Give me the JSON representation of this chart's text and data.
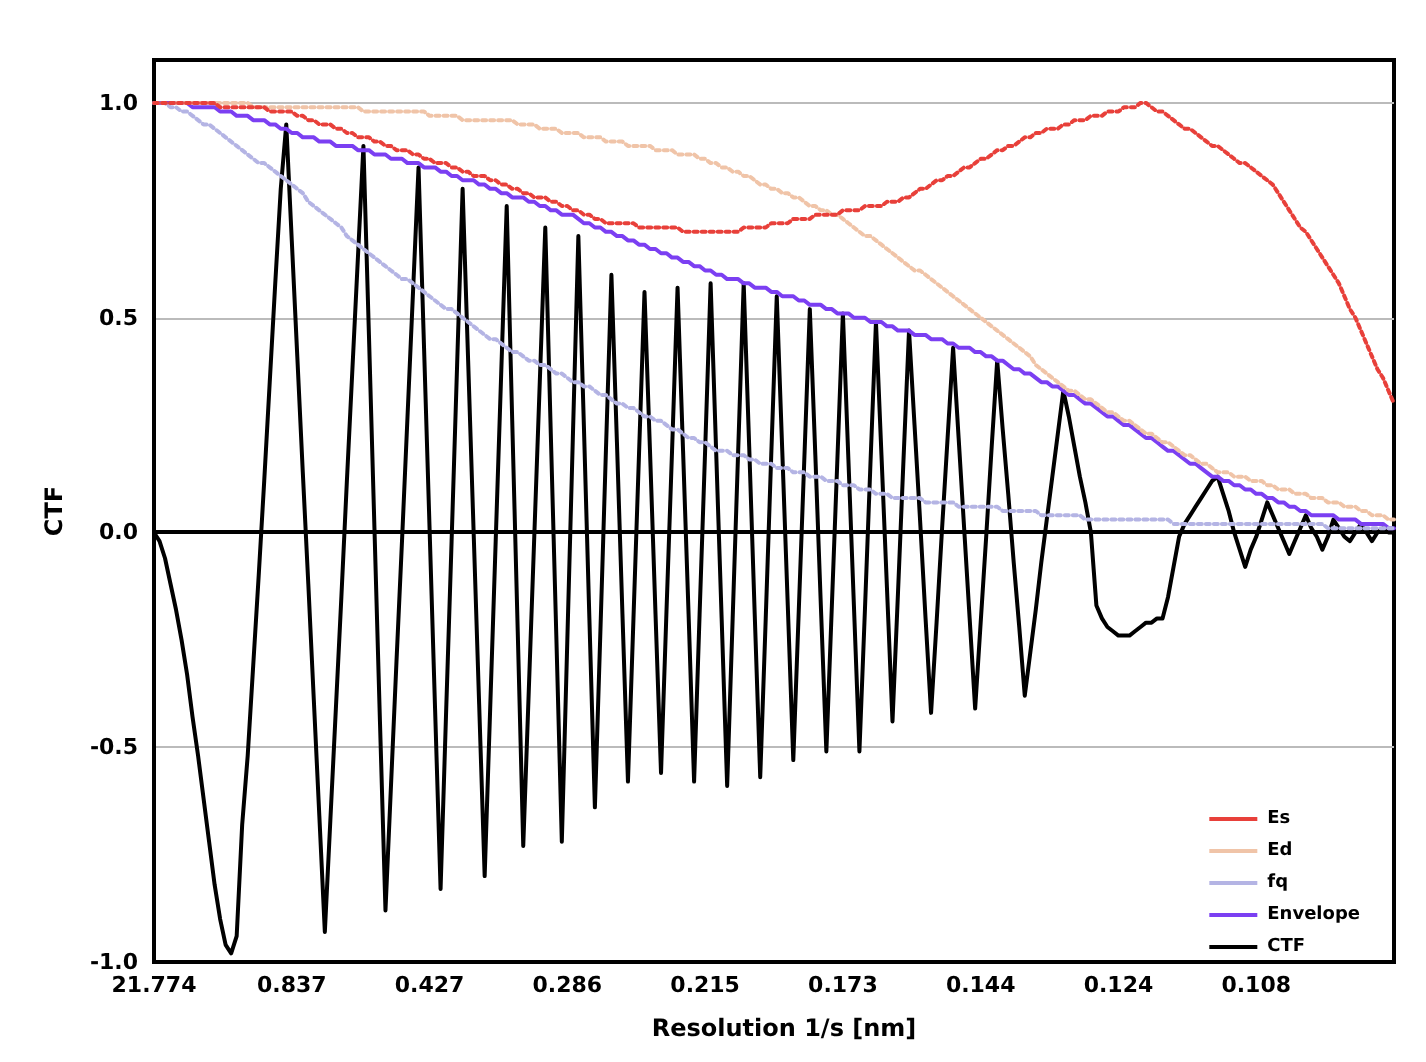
{
  "chart_data": {
    "type": "line",
    "xlabel": "Resolution 1/s [nm]",
    "ylabel": "CTF",
    "categories": [
      "21.774",
      null,
      null,
      null,
      null,
      null,
      null,
      null,
      null,
      null,
      null,
      null,
      null,
      null,
      null,
      null,
      null,
      null,
      null,
      null,
      null,
      null,
      null,
      null,
      null,
      "0.837",
      null,
      null,
      null,
      null,
      null,
      null,
      null,
      null,
      null,
      null,
      null,
      null,
      null,
      null,
      null,
      null,
      null,
      null,
      null,
      null,
      null,
      null,
      null,
      null,
      "0.427",
      null,
      null,
      null,
      null,
      null,
      null,
      null,
      null,
      null,
      null,
      null,
      null,
      null,
      null,
      null,
      null,
      null,
      null,
      null,
      null,
      null,
      null,
      null,
      null,
      "0.286",
      null,
      null,
      null,
      null,
      null,
      null,
      null,
      null,
      null,
      null,
      null,
      null,
      null,
      null,
      null,
      null,
      null,
      null,
      null,
      null,
      null,
      null,
      null,
      null,
      "0.215",
      null,
      null,
      null,
      null,
      null,
      null,
      null,
      null,
      null,
      null,
      null,
      null,
      null,
      null,
      null,
      null,
      null,
      null,
      null,
      null,
      null,
      null,
      null,
      null,
      "0.173",
      null,
      null,
      null,
      null,
      null,
      null,
      null,
      null,
      null,
      null,
      null,
      null,
      null,
      null,
      null,
      null,
      null,
      null,
      null,
      null,
      null,
      null,
      null,
      null,
      "0.144",
      null,
      null,
      null,
      null,
      null,
      null,
      null,
      null,
      null,
      null,
      null,
      null,
      null,
      null,
      null,
      null,
      null,
      null,
      null,
      null,
      null,
      null,
      null,
      null,
      "0.124",
      null,
      null,
      null,
      null,
      null,
      null,
      null,
      null,
      null,
      null,
      null,
      null,
      null,
      null,
      null,
      null,
      null,
      null,
      null,
      null,
      null,
      null,
      null,
      null,
      "0.108",
      null,
      null,
      null,
      null,
      null,
      null,
      null,
      null,
      null,
      null,
      null,
      null,
      null,
      null,
      null,
      null,
      null,
      null,
      null,
      null,
      null,
      null,
      null,
      null,
      null
    ],
    "ylim": [
      -1,
      1.1
    ],
    "yticks": [
      {
        "value": -1,
        "label": "-1.0"
      },
      {
        "value": -0.5,
        "label": "-0.5"
      },
      {
        "value": 0,
        "label": "0.0"
      },
      {
        "value": 0.5,
        "label": "0.5"
      },
      {
        "value": 1,
        "label": "1.0"
      }
    ],
    "grid": "y",
    "legend": "bottom right",
    "marker": "none",
    "series": [
      {
        "name": "Es",
        "color": "#e8403a",
        "line_style": "dotted",
        "values": [
          1.0,
          1.0,
          1.0,
          1.0,
          1.0,
          1.0,
          1.0,
          1.0,
          1.0,
          1.0,
          1.0,
          1.0,
          0.99,
          0.99,
          0.99,
          0.99,
          0.99,
          0.99,
          0.99,
          0.99,
          0.99,
          0.98,
          0.98,
          0.98,
          0.98,
          0.98,
          0.97,
          0.97,
          0.96,
          0.96,
          0.95,
          0.95,
          0.95,
          0.94,
          0.94,
          0.93,
          0.93,
          0.92,
          0.92,
          0.92,
          0.91,
          0.91,
          0.9,
          0.9,
          0.89,
          0.89,
          0.89,
          0.88,
          0.88,
          0.87,
          0.87,
          0.86,
          0.86,
          0.86,
          0.85,
          0.85,
          0.84,
          0.84,
          0.83,
          0.83,
          0.83,
          0.82,
          0.82,
          0.81,
          0.81,
          0.8,
          0.8,
          0.79,
          0.79,
          0.78,
          0.78,
          0.78,
          0.77,
          0.77,
          0.76,
          0.76,
          0.75,
          0.75,
          0.74,
          0.74,
          0.73,
          0.73,
          0.72,
          0.72,
          0.72,
          0.72,
          0.72,
          0.72,
          0.71,
          0.71,
          0.71,
          0.71,
          0.71,
          0.71,
          0.71,
          0.71,
          0.7,
          0.7,
          0.7,
          0.7,
          0.7,
          0.7,
          0.7,
          0.7,
          0.7,
          0.7,
          0.7,
          0.71,
          0.71,
          0.71,
          0.71,
          0.71,
          0.72,
          0.72,
          0.72,
          0.72,
          0.73,
          0.73,
          0.73,
          0.73,
          0.74,
          0.74,
          0.74,
          0.74,
          0.74,
          0.75,
          0.75,
          0.75,
          0.75,
          0.76,
          0.76,
          0.76,
          0.76,
          0.77,
          0.77,
          0.77,
          0.78,
          0.78,
          0.79,
          0.8,
          0.8,
          0.81,
          0.82,
          0.82,
          0.83,
          0.83,
          0.84,
          0.85,
          0.85,
          0.86,
          0.87,
          0.87,
          0.88,
          0.89,
          0.89,
          0.9,
          0.9,
          0.91,
          0.92,
          0.92,
          0.93,
          0.93,
          0.94,
          0.94,
          0.94,
          0.95,
          0.95,
          0.96,
          0.96,
          0.96,
          0.97,
          0.97,
          0.97,
          0.98,
          0.98,
          0.98,
          0.99,
          0.99,
          0.99,
          1.0,
          1.0,
          0.99,
          0.98,
          0.98,
          0.97,
          0.96,
          0.95,
          0.94,
          0.94,
          0.93,
          0.92,
          0.91,
          0.9,
          0.9,
          0.89,
          0.88,
          0.87,
          0.86,
          0.86,
          0.85,
          0.84,
          0.83,
          0.82,
          0.81,
          0.79,
          0.77,
          0.75,
          0.73,
          0.71,
          0.7,
          0.68,
          0.66,
          0.64,
          0.62,
          0.6,
          0.58,
          0.55,
          0.52,
          0.5,
          0.47,
          0.44,
          0.41,
          0.38,
          0.36,
          0.33,
          0.3
        ]
      },
      {
        "name": "Ed",
        "color": "#f0c4a8",
        "line_style": "dotted",
        "values": [
          null,
          null,
          null,
          null,
          1.0,
          1.0,
          1.0,
          1.0,
          1.0,
          1.0,
          1.0,
          1.0,
          1.0,
          1.0,
          1.0,
          1.0,
          1.0,
          1.0,
          0.99,
          0.99,
          0.99,
          0.99,
          0.99,
          0.99,
          0.99,
          0.99,
          0.99,
          0.99,
          0.99,
          0.99,
          0.99,
          0.99,
          0.99,
          0.99,
          0.99,
          0.99,
          0.99,
          0.99,
          0.98,
          0.98,
          0.98,
          0.98,
          0.98,
          0.98,
          0.98,
          0.98,
          0.98,
          0.98,
          0.98,
          0.98,
          0.97,
          0.97,
          0.97,
          0.97,
          0.97,
          0.97,
          0.96,
          0.96,
          0.96,
          0.96,
          0.96,
          0.96,
          0.96,
          0.96,
          0.96,
          0.96,
          0.95,
          0.95,
          0.95,
          0.95,
          0.94,
          0.94,
          0.94,
          0.94,
          0.93,
          0.93,
          0.93,
          0.93,
          0.92,
          0.92,
          0.92,
          0.92,
          0.91,
          0.91,
          0.91,
          0.91,
          0.9,
          0.9,
          0.9,
          0.9,
          0.9,
          0.89,
          0.89,
          0.89,
          0.89,
          0.88,
          0.88,
          0.88,
          0.88,
          0.87,
          0.87,
          0.86,
          0.86,
          0.85,
          0.85,
          0.84,
          0.84,
          0.83,
          0.83,
          0.82,
          0.81,
          0.81,
          0.8,
          0.8,
          0.79,
          0.79,
          0.78,
          0.78,
          0.77,
          0.76,
          0.76,
          0.75,
          0.75,
          0.74,
          0.74,
          0.73,
          0.72,
          0.71,
          0.7,
          0.69,
          0.69,
          0.68,
          0.67,
          0.66,
          0.65,
          0.64,
          0.63,
          0.62,
          0.61,
          0.61,
          0.6,
          0.59,
          0.58,
          0.57,
          0.56,
          0.55,
          0.54,
          0.53,
          0.52,
          0.51,
          0.5,
          0.49,
          0.48,
          0.47,
          0.46,
          0.45,
          0.44,
          0.43,
          0.42,
          0.41,
          0.39,
          0.38,
          0.37,
          0.36,
          0.35,
          0.34,
          0.33,
          0.33,
          0.32,
          0.31,
          0.31,
          0.3,
          0.29,
          0.28,
          0.28,
          0.27,
          0.26,
          0.26,
          0.25,
          0.24,
          0.23,
          0.23,
          0.22,
          0.21,
          0.21,
          0.2,
          0.19,
          0.18,
          0.18,
          0.17,
          0.16,
          0.16,
          0.15,
          0.14,
          0.14,
          0.14,
          0.13,
          0.13,
          0.13,
          0.12,
          0.12,
          0.12,
          0.11,
          0.11,
          0.1,
          0.1,
          0.1,
          0.09,
          0.09,
          0.09,
          0.08,
          0.08,
          0.08,
          0.07,
          0.07,
          0.07,
          0.06,
          0.06,
          0.06,
          0.05,
          0.05,
          0.04,
          0.04,
          0.04,
          0.03,
          0.03
        ]
      },
      {
        "name": "fq",
        "color": "#b4b4e4",
        "line_style": "dotted",
        "values": [
          1.0,
          1.0,
          1.0,
          0.99,
          0.99,
          0.98,
          0.98,
          0.97,
          0.96,
          0.95,
          0.95,
          0.94,
          0.93,
          0.92,
          0.91,
          0.9,
          0.89,
          0.88,
          0.87,
          0.86,
          0.86,
          0.85,
          0.84,
          0.83,
          0.82,
          0.81,
          0.8,
          0.79,
          0.77,
          0.76,
          0.75,
          0.74,
          0.73,
          0.72,
          0.71,
          0.69,
          0.68,
          0.67,
          0.66,
          0.65,
          0.64,
          0.63,
          0.62,
          0.61,
          0.6,
          0.59,
          0.59,
          0.58,
          0.57,
          0.56,
          0.55,
          0.54,
          0.53,
          0.52,
          0.52,
          0.51,
          0.5,
          0.49,
          0.48,
          0.47,
          0.46,
          0.45,
          0.45,
          0.44,
          0.43,
          0.42,
          0.42,
          0.41,
          0.4,
          0.4,
          0.39,
          0.39,
          0.38,
          0.37,
          0.37,
          0.36,
          0.35,
          0.35,
          0.34,
          0.34,
          0.33,
          0.32,
          0.32,
          0.31,
          0.3,
          0.3,
          0.29,
          0.29,
          0.28,
          0.27,
          0.27,
          0.26,
          0.26,
          0.25,
          0.24,
          0.24,
          0.23,
          0.22,
          0.22,
          0.21,
          0.21,
          0.2,
          0.19,
          0.19,
          0.19,
          0.18,
          0.18,
          0.18,
          0.17,
          0.17,
          0.16,
          0.16,
          0.16,
          0.15,
          0.15,
          0.15,
          0.14,
          0.14,
          0.14,
          0.13,
          0.13,
          0.13,
          0.12,
          0.12,
          0.12,
          0.11,
          0.11,
          0.11,
          0.1,
          0.1,
          0.1,
          0.09,
          0.09,
          0.09,
          0.08,
          0.08,
          0.08,
          0.08,
          0.08,
          0.08,
          0.07,
          0.07,
          0.07,
          0.07,
          0.07,
          0.07,
          0.06,
          0.06,
          0.06,
          0.06,
          0.06,
          0.06,
          0.06,
          0.06,
          0.05,
          0.05,
          0.05,
          0.05,
          0.05,
          0.05,
          0.05,
          0.04,
          0.04,
          0.04,
          0.04,
          0.04,
          0.04,
          0.04,
          0.04,
          0.03,
          0.03,
          0.03,
          0.03,
          0.03,
          0.03,
          0.03,
          0.03,
          0.03,
          0.03,
          0.03,
          0.03,
          0.03,
          0.03,
          0.03,
          0.03,
          0.02,
          0.02,
          0.02,
          0.02,
          0.02,
          0.02,
          0.02,
          0.02,
          0.02,
          0.02,
          0.02,
          0.02,
          0.02,
          0.02,
          0.02,
          0.02,
          0.02,
          0.02,
          0.02,
          0.02,
          0.02,
          0.02,
          0.02,
          0.02,
          0.02,
          0.02,
          0.02,
          0.02,
          0.01,
          0.01,
          0.01,
          0.01,
          0.01,
          0.01,
          0.01,
          0.01,
          0.01,
          0.01,
          0.01,
          0.01,
          0.01
        ]
      },
      {
        "name": "Envelope",
        "color": "#7b3ff2",
        "line_style": "solid",
        "values": [
          1.0,
          1.0,
          1.0,
          1.0,
          1.0,
          1.0,
          1.0,
          0.99,
          0.99,
          0.99,
          0.99,
          0.99,
          0.98,
          0.98,
          0.98,
          0.97,
          0.97,
          0.97,
          0.96,
          0.96,
          0.96,
          0.95,
          0.95,
          0.94,
          0.94,
          0.93,
          0.93,
          0.92,
          0.92,
          0.92,
          0.91,
          0.91,
          0.91,
          0.9,
          0.9,
          0.9,
          0.9,
          0.89,
          0.89,
          0.89,
          0.88,
          0.88,
          0.88,
          0.87,
          0.87,
          0.87,
          0.86,
          0.86,
          0.86,
          0.85,
          0.85,
          0.85,
          0.84,
          0.84,
          0.83,
          0.83,
          0.82,
          0.82,
          0.82,
          0.81,
          0.81,
          0.8,
          0.8,
          0.79,
          0.79,
          0.78,
          0.78,
          0.78,
          0.77,
          0.77,
          0.76,
          0.76,
          0.75,
          0.75,
          0.74,
          0.74,
          0.74,
          0.73,
          0.72,
          0.72,
          0.71,
          0.71,
          0.7,
          0.7,
          0.69,
          0.69,
          0.68,
          0.68,
          0.67,
          0.67,
          0.66,
          0.66,
          0.65,
          0.65,
          0.64,
          0.64,
          0.63,
          0.63,
          0.62,
          0.62,
          0.61,
          0.61,
          0.6,
          0.6,
          0.59,
          0.59,
          0.59,
          0.58,
          0.58,
          0.57,
          0.57,
          0.57,
          0.56,
          0.56,
          0.55,
          0.55,
          0.55,
          0.54,
          0.54,
          0.53,
          0.53,
          0.53,
          0.52,
          0.52,
          0.51,
          0.51,
          0.51,
          0.5,
          0.5,
          0.5,
          0.49,
          0.49,
          0.49,
          0.48,
          0.48,
          0.47,
          0.47,
          0.47,
          0.46,
          0.46,
          0.46,
          0.45,
          0.45,
          0.45,
          0.44,
          0.44,
          0.43,
          0.43,
          0.43,
          0.42,
          0.42,
          0.41,
          0.41,
          0.4,
          0.4,
          0.39,
          0.38,
          0.38,
          0.37,
          0.37,
          0.36,
          0.35,
          0.35,
          0.34,
          0.34,
          0.33,
          0.32,
          0.32,
          0.31,
          0.3,
          0.3,
          0.29,
          0.28,
          0.27,
          0.27,
          0.26,
          0.25,
          0.25,
          0.24,
          0.23,
          0.22,
          0.22,
          0.21,
          0.2,
          0.19,
          0.19,
          0.18,
          0.17,
          0.16,
          0.16,
          0.15,
          0.14,
          0.13,
          0.13,
          0.12,
          0.12,
          0.11,
          0.11,
          0.1,
          0.1,
          0.09,
          0.09,
          0.08,
          0.08,
          0.07,
          0.07,
          0.06,
          0.06,
          0.05,
          0.05,
          0.04,
          0.04,
          0.04,
          0.04,
          0.04,
          0.03,
          0.03,
          0.03,
          0.03,
          0.02,
          0.02,
          0.02,
          0.02,
          0.02,
          0.01,
          0.01
        ]
      },
      {
        "name": "CTF",
        "color": "#000000",
        "line_style": "solid",
        "values": [
          0,
          -0.02,
          -0.06,
          -0.12,
          -0.18,
          -0.25,
          -0.33,
          -0.43,
          -0.52,
          -0.62,
          -0.72,
          -0.82,
          -0.9,
          -0.96,
          -0.98,
          -0.94,
          -0.68,
          -0.52,
          -0.31,
          -0.1,
          0.12,
          0.35,
          0.58,
          0.8,
          0.95,
          0.68,
          0.41,
          0.14,
          -0.12,
          -0.39,
          -0.66,
          -0.93,
          -0.67,
          -0.41,
          -0.15,
          0.12,
          0.38,
          0.64,
          0.9,
          0.46,
          0.01,
          -0.44,
          -0.88,
          -0.59,
          -0.3,
          -0.02,
          0.27,
          0.56,
          0.85,
          0.43,
          0.01,
          -0.41,
          -0.83,
          -0.42,
          -0.02,
          0.39,
          0.8,
          0.4,
          0,
          -0.4,
          -0.8,
          -0.41,
          -0.02,
          0.37,
          0.76,
          0.26,
          -0.23,
          -0.73,
          -0.37,
          -0.01,
          0.35,
          0.71,
          0.23,
          -0.24,
          -0.72,
          -0.25,
          0.22,
          0.69,
          0.25,
          -0.2,
          -0.64,
          -0.23,
          0.19,
          0.6,
          0.21,
          -0.19,
          -0.58,
          -0.2,
          0.18,
          0.56,
          0.19,
          -0.19,
          -0.56,
          -0.18,
          0.19,
          0.57,
          0.19,
          -0.19,
          -0.58,
          -0.19,
          0.19,
          0.58,
          0.19,
          -0.2,
          -0.59,
          -0.2,
          0.19,
          0.58,
          0.2,
          -0.19,
          -0.57,
          -0.2,
          0.18,
          0.55,
          0.19,
          -0.17,
          -0.53,
          -0.18,
          0.17,
          0.52,
          0.18,
          -0.17,
          -0.51,
          -0.17,
          0.17,
          0.51,
          0.17,
          -0.17,
          -0.51,
          -0.18,
          0.16,
          0.49,
          0.18,
          -0.13,
          -0.44,
          -0.14,
          0.17,
          0.47,
          0.25,
          0.03,
          -0.2,
          -0.42,
          -0.21,
          0.01,
          0.22,
          0.43,
          0.22,
          0.01,
          -0.2,
          -0.41,
          -0.21,
          -0.01,
          0.2,
          0.4,
          0.24,
          0.09,
          -0.07,
          -0.22,
          -0.38,
          -0.28,
          -0.18,
          -0.07,
          0.03,
          0.13,
          0.23,
          0.33,
          0.27,
          0.2,
          0.13,
          0.07,
          0,
          -0.17,
          -0.2,
          -0.22,
          -0.23,
          -0.24,
          -0.24,
          -0.24,
          -0.23,
          -0.22,
          -0.21,
          -0.21,
          -0.2,
          -0.2,
          -0.15,
          -0.08,
          -0.01,
          0.02,
          0.04,
          0.06,
          0.08,
          0.1,
          0.12,
          0.13,
          0.09,
          0.05,
          0,
          -0.04,
          -0.08,
          -0.04,
          -0.01,
          0.03,
          0.07,
          0.04,
          0.01,
          -0.02,
          -0.05,
          -0.02,
          0.01,
          0.04,
          0.01,
          -0.01,
          -0.04,
          -0.01,
          0.03,
          0.01,
          -0.01,
          -0.02,
          0,
          0.02,
          0,
          -0.02,
          0,
          0.01,
          0,
          0
        ]
      }
    ]
  }
}
